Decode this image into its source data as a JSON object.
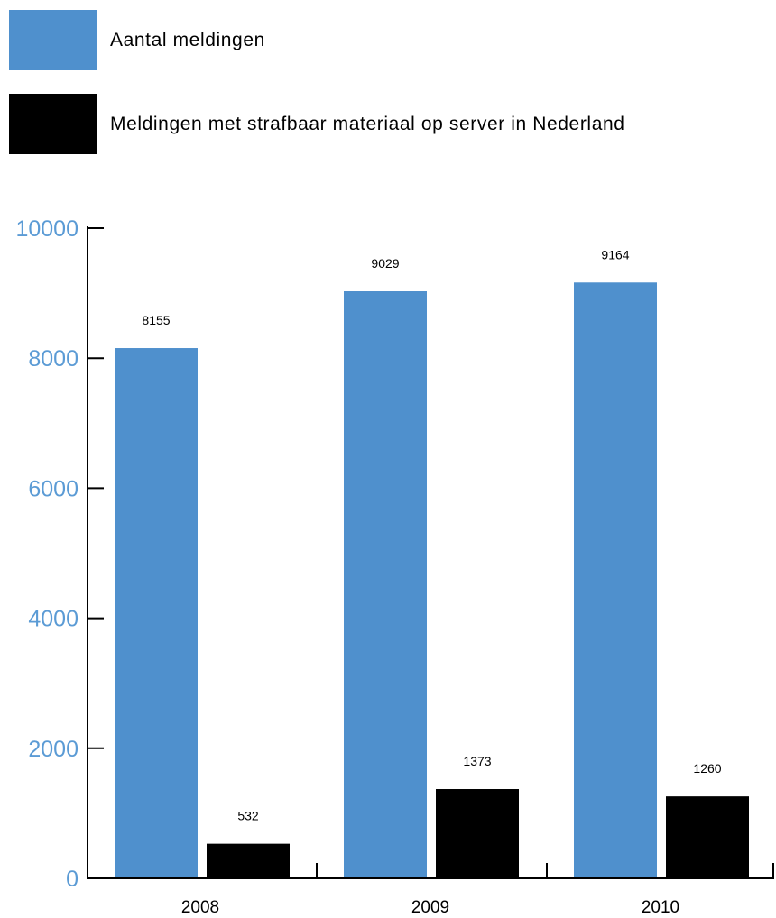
{
  "chart_data": {
    "type": "bar",
    "categories": [
      "2008",
      "2009",
      "2010"
    ],
    "series": [
      {
        "name": "Aantal meldingen",
        "values": [
          8155,
          9029,
          9164
        ],
        "color": "#4f90cd"
      },
      {
        "name": "Meldingen met strafbaar materiaal op server in Nederland",
        "values": [
          532,
          1373,
          1260
        ],
        "color": "#000000"
      }
    ],
    "data_labels": [
      [
        "8155",
        "9029",
        "9164"
      ],
      [
        "532",
        "1373",
        "1260"
      ]
    ],
    "yticks": [
      "0",
      "2000",
      "4000",
      "6000",
      "8000",
      "10000"
    ],
    "ylim": [
      0,
      10000
    ],
    "ytick_color": "#5b9bd5",
    "title": "",
    "xlabel": "",
    "ylabel": "",
    "grid": false,
    "legend_position": "top-left"
  }
}
